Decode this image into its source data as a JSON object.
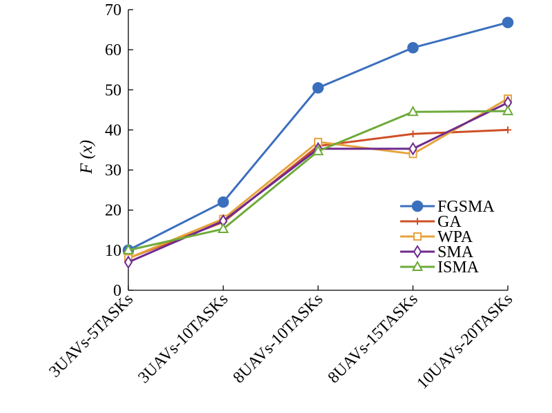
{
  "chart_data": {
    "type": "line",
    "categories": [
      "3UAVs-5TASKs",
      "3UAVs-10TASKs",
      "8UAVs-10TASKs",
      "8UAVs-15TASKs",
      "10UAVs-20TASKs"
    ],
    "ylabel": "F (x)",
    "ylim": [
      0,
      70
    ],
    "yticks": [
      0,
      10,
      20,
      30,
      40,
      50,
      60,
      70
    ],
    "grid": false,
    "legend_position": "right",
    "series": [
      {
        "name": "FGSMA",
        "color": "#3a6fbd",
        "marker": "circle",
        "values": [
          10,
          22,
          50.5,
          60.5,
          66.8
        ]
      },
      {
        "name": "GA",
        "color": "#cf4f27",
        "marker": "plus",
        "values": [
          8,
          17,
          36,
          39,
          40
        ]
      },
      {
        "name": "WPA",
        "color": "#e7a33c",
        "marker": "square",
        "values": [
          8,
          17.8,
          37,
          34,
          47.8
        ]
      },
      {
        "name": "SMA",
        "color": "#6f2a8e",
        "marker": "diamond",
        "values": [
          7,
          17.3,
          35.3,
          35.3,
          46.8
        ]
      },
      {
        "name": "ISMA",
        "color": "#6eaa3a",
        "marker": "triangle",
        "values": [
          10,
          15.3,
          34.7,
          44.5,
          44.7
        ]
      }
    ]
  }
}
